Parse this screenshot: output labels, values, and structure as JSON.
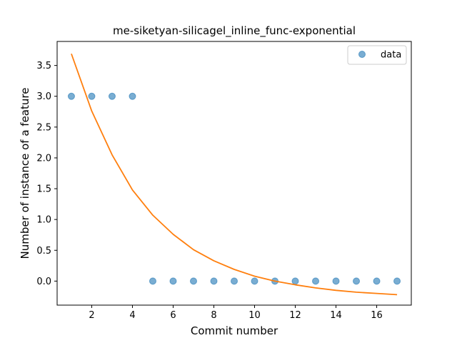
{
  "chart_data": {
    "type": "scatter",
    "title": "me-siketyan-silicagel_inline_func-exponential",
    "xlabel": "Commit number",
    "ylabel": "Number of instance of a feature",
    "xlim": [
      0.3,
      17.7
    ],
    "ylim": [
      -0.39,
      3.89
    ],
    "x_ticks": [
      2,
      4,
      6,
      8,
      10,
      12,
      14,
      16
    ],
    "y_ticks": [
      0.0,
      0.5,
      1.0,
      1.5,
      2.0,
      2.5,
      3.0,
      3.5
    ],
    "x_tick_labels": [
      "2",
      "4",
      "6",
      "8",
      "10",
      "12",
      "14",
      "16"
    ],
    "y_tick_labels": [
      "0.0",
      "0.5",
      "1.0",
      "1.5",
      "2.0",
      "2.5",
      "3.0",
      "3.5"
    ],
    "legend_position": "top-right",
    "series": [
      {
        "name": "data",
        "kind": "scatter",
        "color": "#1f77b4",
        "x": [
          1,
          2,
          3,
          4,
          5,
          6,
          7,
          8,
          9,
          10,
          11,
          12,
          13,
          14,
          15,
          16,
          17
        ],
        "y": [
          3,
          3,
          3,
          3,
          0,
          0,
          0,
          0,
          0,
          0,
          0,
          0,
          0,
          0,
          0,
          0,
          0
        ]
      },
      {
        "kind": "line",
        "color": "#ff7f0e",
        "x": [
          1,
          2,
          3,
          4,
          5,
          6,
          7,
          8,
          9,
          10,
          11,
          12,
          13,
          14,
          15,
          16,
          17
        ],
        "y": [
          3.69,
          2.76,
          2.05,
          1.48,
          1.07,
          0.76,
          0.51,
          0.33,
          0.19,
          0.08,
          0.0,
          -0.06,
          -0.11,
          -0.15,
          -0.18,
          -0.2,
          -0.22
        ]
      }
    ]
  }
}
